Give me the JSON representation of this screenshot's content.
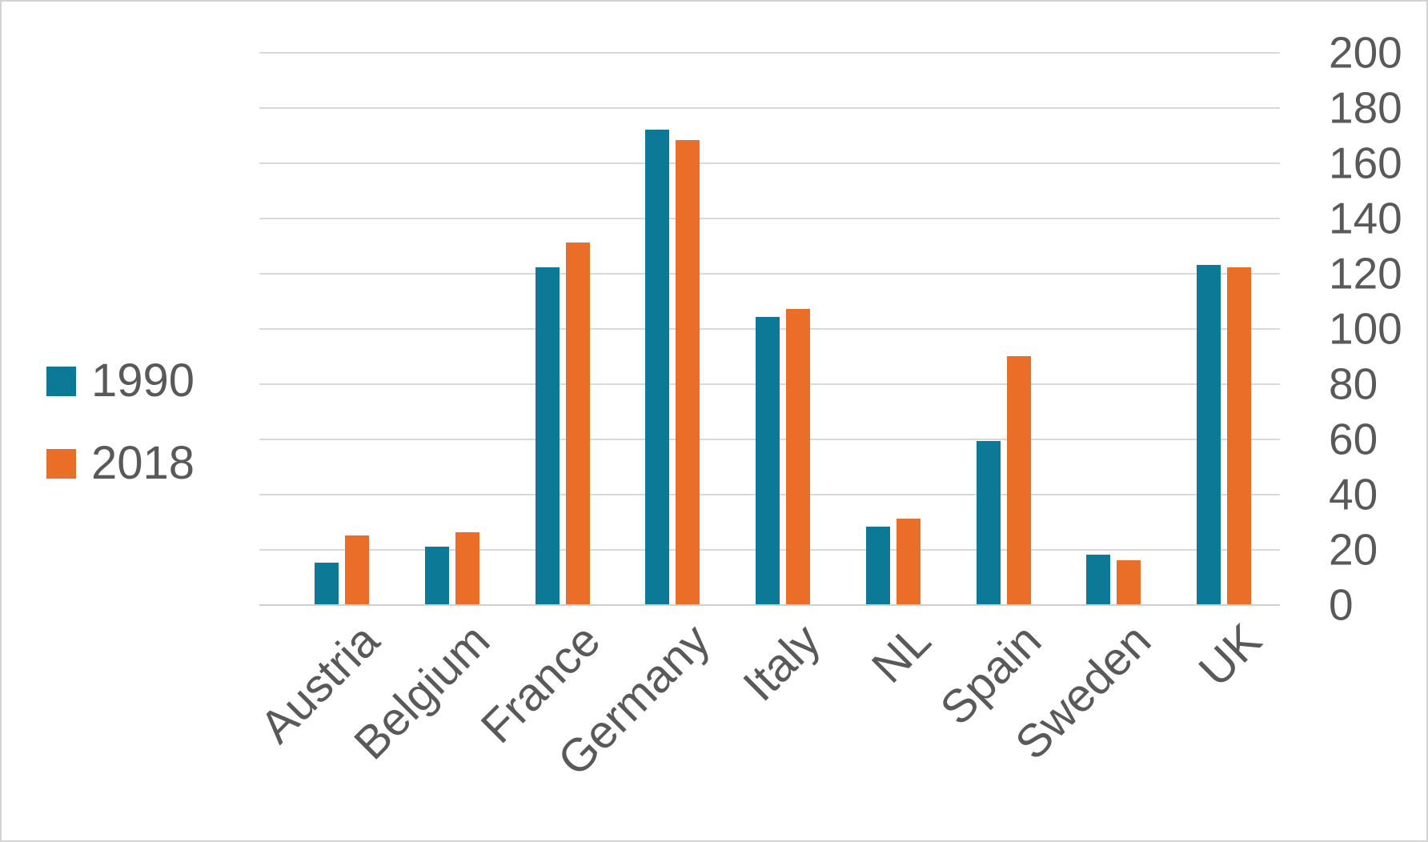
{
  "chart_data": {
    "type": "bar",
    "title": "",
    "xlabel": "",
    "ylabel": "",
    "categories": [
      "Austria",
      "Belgium",
      "France",
      "Germany",
      "Italy",
      "NL",
      "Spain",
      "Sweden",
      "UK"
    ],
    "series": [
      {
        "name": "1990",
        "color": "#0c7996",
        "values": [
          15,
          21,
          122,
          172,
          104,
          28,
          59,
          18,
          123
        ]
      },
      {
        "name": "2018",
        "color": "#eb6e28",
        "values": [
          25,
          26,
          131,
          168,
          107,
          31,
          90,
          16,
          122
        ]
      }
    ],
    "ylim": [
      0,
      200
    ],
    "yticks": [
      0,
      20,
      40,
      60,
      80,
      100,
      120,
      140,
      160,
      180,
      200
    ],
    "grid": true,
    "legend_position": "left",
    "value_axis_side": "right",
    "x_tick_label_rotation_deg": 45
  },
  "colors": {
    "axis_text": "#595959",
    "gridline": "#d9d9d9",
    "border": "#d3d3d3",
    "background": "#ffffff"
  }
}
